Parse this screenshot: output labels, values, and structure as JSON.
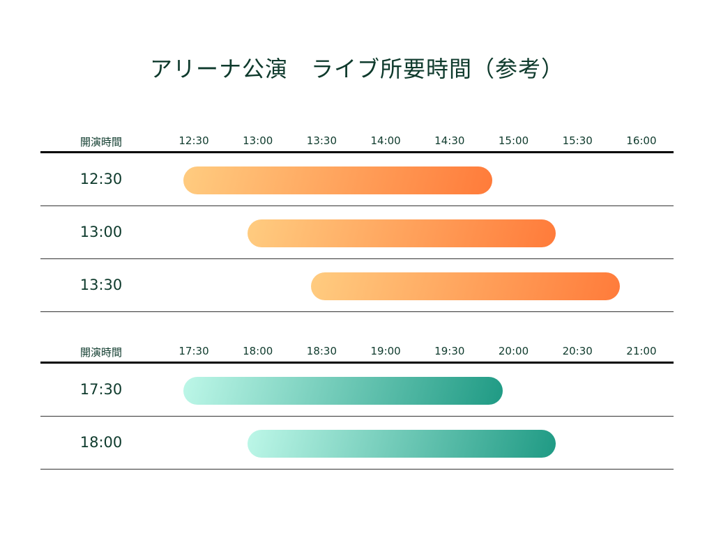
{
  "title": "アリーナ公演　ライブ所要時間（参考）",
  "chart_data": [
    {
      "type": "bar",
      "orientation": "horizontal-range",
      "column_header": "開演時間",
      "ticks": [
        "12:30",
        "13:00",
        "13:30",
        "14:00",
        "14:30",
        "15:00",
        "15:30",
        "16:00"
      ],
      "xlim": [
        "12:30",
        "16:00"
      ],
      "colors": {
        "start": "#FFCC80",
        "end": "#FF7B3A"
      },
      "rows": [
        {
          "label": "12:30",
          "start": "12:30",
          "end": "14:45"
        },
        {
          "label": "13:00",
          "start": "13:00",
          "end": "15:15"
        },
        {
          "label": "13:30",
          "start": "13:30",
          "end": "15:45"
        }
      ]
    },
    {
      "type": "bar",
      "orientation": "horizontal-range",
      "column_header": "開演時間",
      "ticks": [
        "17:30",
        "18:00",
        "18:30",
        "19:00",
        "19:30",
        "20:00",
        "20:30",
        "21:00"
      ],
      "xlim": [
        "17:30",
        "21:00"
      ],
      "colors": {
        "start": "#BDF7E8",
        "end": "#1F9A84"
      },
      "rows": [
        {
          "label": "17:30",
          "start": "17:30",
          "end": "19:50"
        },
        {
          "label": "18:00",
          "start": "18:00",
          "end": "20:15"
        }
      ]
    }
  ]
}
